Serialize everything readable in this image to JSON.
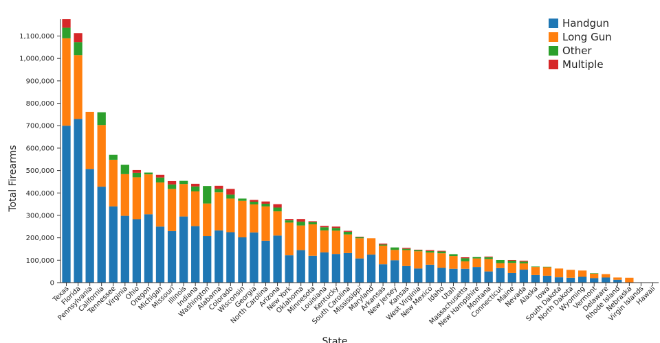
{
  "chart_data": {
    "type": "bar",
    "stacked": true,
    "xlabel": "State",
    "ylabel": "Total Firearms",
    "ylim": [
      0,
      1175000
    ],
    "yticks": [
      0,
      100000,
      200000,
      300000,
      400000,
      500000,
      600000,
      700000,
      800000,
      900000,
      1000000,
      1100000
    ],
    "ytick_labels": [
      "0",
      "100,000",
      "200,000",
      "300,000",
      "400,000",
      "500,000",
      "600,000",
      "700,000",
      "800,000",
      "900,000",
      "1,000,000",
      "1,100,000"
    ],
    "legend_position": "top-right",
    "colors": {
      "Handgun": "#1f77b4",
      "Long Gun": "#ff7f0e",
      "Other": "#2ca02c",
      "Multiple": "#d62728"
    },
    "categories": [
      "Texas",
      "Florida",
      "Pennsylvania",
      "California",
      "Tennessee",
      "Virginia",
      "Ohio",
      "Oregon",
      "Michigan",
      "Missouri",
      "Illinois",
      "Indiana",
      "Washington",
      "Alabama",
      "Colorado",
      "Wisconsin",
      "Georgia",
      "North Carolina",
      "Arizona",
      "New York",
      "Oklahoma",
      "Minnesota",
      "Louisiana",
      "Kentucky",
      "South Carolina",
      "Mississippi",
      "Maryland",
      "Arkansas",
      "New Jersey",
      "Kansas",
      "West Virginia",
      "New Mexico",
      "Idaho",
      "Utah",
      "Massachusetts",
      "New Hampshire",
      "Montana",
      "Connecticut",
      "Maine",
      "Nevada",
      "Alaska",
      "Iowa",
      "South Dakota",
      "North Dakota",
      "Wyoming",
      "Vermont",
      "Delaware",
      "Rhode Island",
      "Nebraska",
      "Virgin Islands",
      "Hawaii"
    ],
    "series": [
      {
        "name": "Handgun",
        "values": [
          700000,
          730000,
          507000,
          428000,
          340000,
          298000,
          283000,
          305000,
          250000,
          230000,
          295000,
          252000,
          208000,
          233000,
          225000,
          202000,
          224000,
          187000,
          210000,
          122000,
          145000,
          120000,
          135000,
          128000,
          132000,
          108000,
          125000,
          82000,
          100000,
          74000,
          63000,
          80000,
          66000,
          62000,
          62000,
          70000,
          50000,
          65000,
          43000,
          58000,
          34000,
          31000,
          24000,
          22000,
          26000,
          20000,
          23000,
          13000,
          0,
          0,
          0
        ]
      },
      {
        "name": "Long Gun",
        "values": [
          390000,
          285000,
          255000,
          275000,
          208000,
          186000,
          187000,
          178000,
          197000,
          188000,
          145000,
          155000,
          145000,
          170000,
          150000,
          163000,
          125000,
          153000,
          108000,
          146000,
          110000,
          140000,
          98000,
          104000,
          83000,
          90000,
          73000,
          83000,
          46000,
          71000,
          77000,
          54000,
          65000,
          57000,
          33000,
          38000,
          55000,
          22000,
          45000,
          28000,
          36000,
          38000,
          39000,
          35000,
          28000,
          20000,
          15000,
          10000,
          22000,
          0,
          0
        ]
      },
      {
        "name": "Other",
        "values": [
          47000,
          58000,
          0,
          57000,
          22000,
          42000,
          20000,
          8000,
          22000,
          20000,
          14000,
          22000,
          78000,
          15000,
          18000,
          10000,
          12000,
          12000,
          17000,
          10000,
          17000,
          10000,
          14000,
          12000,
          12000,
          5000,
          0,
          5000,
          11000,
          6000,
          5000,
          7000,
          8000,
          8000,
          14000,
          6000,
          8000,
          14000,
          10000,
          8000,
          2000,
          2000,
          0,
          0,
          0,
          2000,
          0,
          0,
          0,
          0,
          0
        ]
      },
      {
        "name": "Multiple",
        "values": [
          38000,
          40000,
          0,
          0,
          0,
          0,
          12000,
          0,
          12000,
          15000,
          0,
          12000,
          0,
          14000,
          25000,
          0,
          8000,
          10000,
          15000,
          6000,
          12000,
          4000,
          6000,
          6000,
          4000,
          2000,
          0,
          4000,
          0,
          4000,
          2000,
          4000,
          3000,
          0,
          4000,
          0,
          3000,
          0,
          3000,
          4000,
          0,
          0,
          0,
          0,
          0,
          0,
          0,
          0,
          0,
          0,
          0
        ]
      }
    ]
  }
}
